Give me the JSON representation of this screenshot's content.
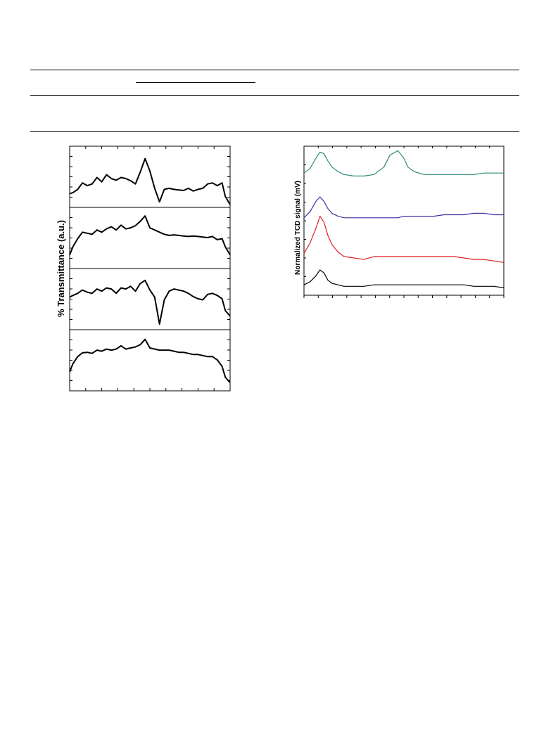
{
  "table": {
    "note": ""
  },
  "chart_data": [
    {
      "type": "line",
      "ylabel": "% Transmittance (a.u.)",
      "xlabel": "",
      "panels": 4,
      "x": [
        0.0,
        0.02,
        0.05,
        0.08,
        0.11,
        0.14,
        0.17,
        0.2,
        0.23,
        0.26,
        0.29,
        0.32,
        0.35,
        0.38,
        0.41,
        0.44,
        0.47,
        0.5,
        0.53,
        0.56,
        0.59,
        0.62,
        0.65,
        0.68,
        0.71,
        0.74,
        0.77,
        0.8,
        0.83,
        0.86,
        0.89,
        0.92,
        0.95,
        0.97,
        1.0
      ],
      "series": [
        {
          "values": [
            0.2,
            0.22,
            0.28,
            0.4,
            0.35,
            0.38,
            0.5,
            0.42,
            0.55,
            0.48,
            0.45,
            0.5,
            0.48,
            0.44,
            0.38,
            0.6,
            0.85,
            0.62,
            0.3,
            0.05,
            0.28,
            0.3,
            0.28,
            0.27,
            0.26,
            0.3,
            0.25,
            0.28,
            0.3,
            0.38,
            0.4,
            0.35,
            0.4,
            0.15,
            0.0
          ]
        },
        {
          "values": [
            0.2,
            0.35,
            0.5,
            0.62,
            0.6,
            0.58,
            0.66,
            0.62,
            0.68,
            0.72,
            0.66,
            0.75,
            0.68,
            0.7,
            0.74,
            0.82,
            0.92,
            0.7,
            0.66,
            0.62,
            0.58,
            0.56,
            0.57,
            0.56,
            0.55,
            0.54,
            0.55,
            0.54,
            0.53,
            0.52,
            0.54,
            0.48,
            0.5,
            0.35,
            0.2
          ]
        },
        {
          "values": [
            0.55,
            0.58,
            0.62,
            0.68,
            0.64,
            0.62,
            0.7,
            0.66,
            0.72,
            0.7,
            0.62,
            0.72,
            0.7,
            0.75,
            0.66,
            0.8,
            0.86,
            0.68,
            0.55,
            0.05,
            0.5,
            0.66,
            0.7,
            0.68,
            0.66,
            0.62,
            0.56,
            0.52,
            0.5,
            0.6,
            0.62,
            0.58,
            0.52,
            0.3,
            0.2
          ]
        },
        {
          "values": [
            0.3,
            0.45,
            0.58,
            0.65,
            0.66,
            0.64,
            0.7,
            0.68,
            0.72,
            0.7,
            0.72,
            0.78,
            0.72,
            0.74,
            0.76,
            0.8,
            0.9,
            0.74,
            0.72,
            0.7,
            0.7,
            0.7,
            0.68,
            0.66,
            0.66,
            0.64,
            0.62,
            0.62,
            0.6,
            0.58,
            0.58,
            0.52,
            0.4,
            0.2,
            0.1
          ]
        }
      ]
    },
    {
      "type": "line",
      "ylabel": "Normalized TCD signal (mV)",
      "xlabel": "",
      "x": [
        0.0,
        0.03,
        0.06,
        0.08,
        0.1,
        0.12,
        0.14,
        0.17,
        0.2,
        0.25,
        0.3,
        0.35,
        0.4,
        0.43,
        0.47,
        0.5,
        0.52,
        0.55,
        0.6,
        0.65,
        0.7,
        0.75,
        0.8,
        0.85,
        0.9,
        0.95,
        1.0
      ],
      "series": [
        {
          "color": "#2e8b7a",
          "values": [
            0.82,
            0.85,
            0.92,
            0.96,
            0.95,
            0.9,
            0.86,
            0.83,
            0.81,
            0.8,
            0.8,
            0.81,
            0.86,
            0.94,
            0.97,
            0.92,
            0.86,
            0.83,
            0.81,
            0.81,
            0.81,
            0.81,
            0.81,
            0.81,
            0.82,
            0.82,
            0.82
          ]
        },
        {
          "color": "#3b2fa0",
          "values": [
            0.52,
            0.56,
            0.63,
            0.66,
            0.63,
            0.58,
            0.55,
            0.53,
            0.52,
            0.52,
            0.52,
            0.52,
            0.52,
            0.52,
            0.52,
            0.53,
            0.53,
            0.53,
            0.53,
            0.53,
            0.54,
            0.54,
            0.54,
            0.55,
            0.55,
            0.54,
            0.54
          ]
        },
        {
          "color": "#e02020",
          "values": [
            0.28,
            0.35,
            0.45,
            0.53,
            0.49,
            0.4,
            0.34,
            0.29,
            0.26,
            0.25,
            0.24,
            0.26,
            0.26,
            0.26,
            0.26,
            0.26,
            0.26,
            0.26,
            0.26,
            0.26,
            0.26,
            0.26,
            0.25,
            0.24,
            0.24,
            0.23,
            0.22
          ]
        },
        {
          "color": "#000000",
          "values": [
            0.07,
            0.09,
            0.13,
            0.17,
            0.15,
            0.1,
            0.08,
            0.07,
            0.06,
            0.06,
            0.06,
            0.07,
            0.07,
            0.07,
            0.07,
            0.07,
            0.07,
            0.07,
            0.07,
            0.07,
            0.07,
            0.07,
            0.07,
            0.06,
            0.06,
            0.06,
            0.05
          ]
        }
      ]
    }
  ]
}
